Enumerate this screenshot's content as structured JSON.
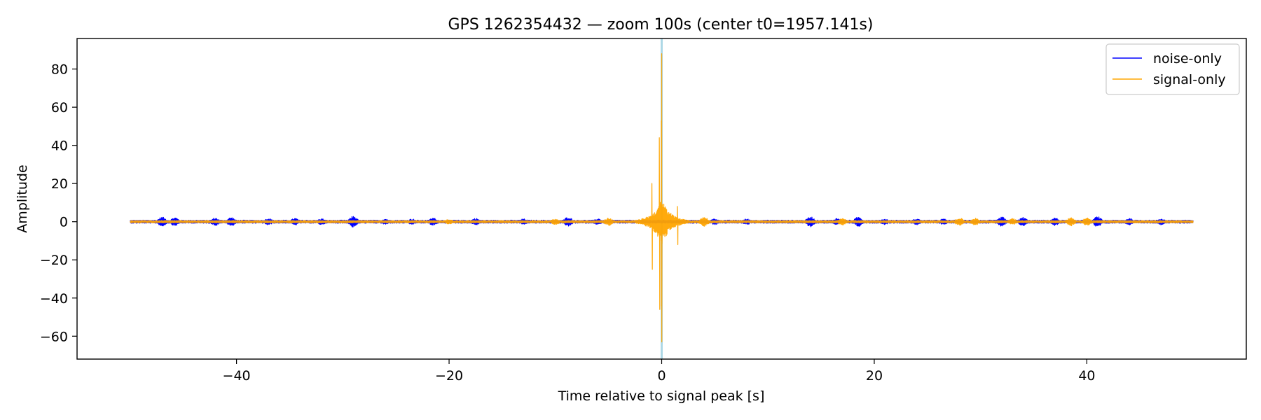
{
  "chart_data": {
    "type": "line",
    "title": "GPS 1262354432 — zoom 100s (center t0=1957.141s)",
    "xlabel": "Time relative to signal peak [s]",
    "ylabel": "Amplitude",
    "xlim": [
      -55,
      55
    ],
    "ylim": [
      -72,
      96
    ],
    "xticks": [
      -40,
      -20,
      0,
      20,
      40
    ],
    "yticks": [
      -60,
      -40,
      -20,
      0,
      20,
      40,
      60,
      80
    ],
    "grid": false,
    "legend_position": "top-right",
    "vertical_marker": {
      "x": 0,
      "color": "#add8e6"
    },
    "series": [
      {
        "name": "noise-only",
        "color": "#0000ff",
        "x_range": [
          -50,
          50
        ],
        "baseline_amplitude": 0.8,
        "bursts": [
          {
            "t": -47,
            "amplitude": 2.5
          },
          {
            "t": -45.8,
            "amplitude": 2.2
          },
          {
            "t": -42,
            "amplitude": 2.0
          },
          {
            "t": -40.5,
            "amplitude": 2.3
          },
          {
            "t": -37,
            "amplitude": 1.8
          },
          {
            "t": -34.5,
            "amplitude": 1.8
          },
          {
            "t": -32,
            "amplitude": 1.6
          },
          {
            "t": -29,
            "amplitude": 3.0
          },
          {
            "t": -26,
            "amplitude": 1.5
          },
          {
            "t": -23.5,
            "amplitude": 1.5
          },
          {
            "t": -21.5,
            "amplitude": 2.0
          },
          {
            "t": -17.5,
            "amplitude": 1.8
          },
          {
            "t": -13,
            "amplitude": 1.5
          },
          {
            "t": -8.8,
            "amplitude": 2.5
          },
          {
            "t": -6,
            "amplitude": 1.6
          },
          {
            "t": 5,
            "amplitude": 1.6
          },
          {
            "t": 8,
            "amplitude": 1.5
          },
          {
            "t": 14,
            "amplitude": 2.7
          },
          {
            "t": 16.5,
            "amplitude": 1.8
          },
          {
            "t": 18.5,
            "amplitude": 2.5
          },
          {
            "t": 21,
            "amplitude": 1.5
          },
          {
            "t": 24,
            "amplitude": 1.6
          },
          {
            "t": 26.5,
            "amplitude": 1.5
          },
          {
            "t": 32,
            "amplitude": 2.5
          },
          {
            "t": 34,
            "amplitude": 2.3
          },
          {
            "t": 37,
            "amplitude": 2.0
          },
          {
            "t": 41,
            "amplitude": 2.7
          },
          {
            "t": 44,
            "amplitude": 1.8
          },
          {
            "t": 47,
            "amplitude": 1.6
          }
        ]
      },
      {
        "name": "signal-only",
        "color": "#ffa500",
        "x_range": [
          -50,
          50
        ],
        "baseline_amplitude": 0.6,
        "peak": {
          "t": 0,
          "max": 88,
          "min": -63
        },
        "features": [
          {
            "t": -0.2,
            "max": 44,
            "min": -46
          },
          {
            "t": -0.9,
            "max": 20,
            "min": -25
          },
          {
            "t": 1.5,
            "max": 8,
            "min": -12
          }
        ],
        "bursts": [
          {
            "t": -20,
            "amplitude": 1.2
          },
          {
            "t": -10,
            "amplitude": 1.5
          },
          {
            "t": -5,
            "amplitude": 2.0
          },
          {
            "t": 4,
            "amplitude": 2.5
          },
          {
            "t": 17,
            "amplitude": 1.8
          },
          {
            "t": 28,
            "amplitude": 2.0
          },
          {
            "t": 29.5,
            "amplitude": 1.8
          },
          {
            "t": 33,
            "amplitude": 1.6
          },
          {
            "t": 38.5,
            "amplitude": 2.2
          },
          {
            "t": 40,
            "amplitude": 2.0
          }
        ]
      }
    ]
  }
}
